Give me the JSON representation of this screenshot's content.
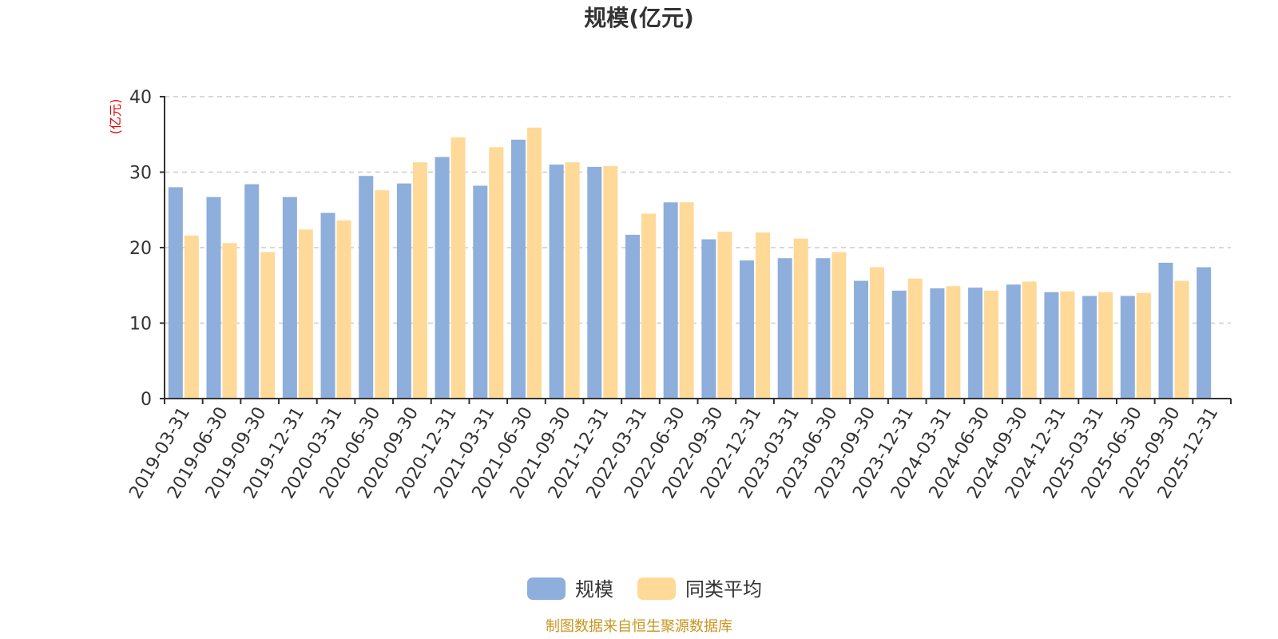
{
  "chart_data": {
    "type": "bar",
    "title": "规模(亿元)",
    "ylabel": "(亿元)",
    "xlabel": "",
    "ylim": [
      0,
      40
    ],
    "yticks": [
      0,
      10,
      20,
      30,
      40
    ],
    "grid": true,
    "legend_position": "bottom-center",
    "categories": [
      "2019-03-31",
      "2019-06-30",
      "2019-09-30",
      "2019-12-31",
      "2020-03-31",
      "2020-06-30",
      "2020-09-30",
      "2020-12-31",
      "2021-03-31",
      "2021-06-30",
      "2021-09-30",
      "2021-12-31",
      "2022-03-31",
      "2022-06-30",
      "2022-09-30",
      "2022-12-31",
      "2023-03-31",
      "2023-06-30",
      "2023-09-30",
      "2023-12-31",
      "2024-03-31",
      "2024-06-30",
      "2024-09-30",
      "2024-12-31",
      "2025-03-31",
      "2025-06-30",
      "2025-09-30",
      "2025-12-31"
    ],
    "series": [
      {
        "name": "规模",
        "color": "#8eaedb",
        "values": [
          28.0,
          26.7,
          28.4,
          26.7,
          24.6,
          29.5,
          28.5,
          32.0,
          28.2,
          34.3,
          31.0,
          30.7,
          21.7,
          26.0,
          21.1,
          18.3,
          18.6,
          18.6,
          15.6,
          14.3,
          14.6,
          14.7,
          15.1,
          14.1,
          13.6,
          13.6,
          18.0,
          17.4
        ]
      },
      {
        "name": "同类平均",
        "color": "#ffd998",
        "values": [
          21.6,
          20.6,
          19.4,
          22.4,
          23.6,
          27.6,
          31.3,
          34.6,
          33.3,
          35.9,
          31.3,
          30.8,
          24.5,
          26.0,
          22.1,
          22.0,
          21.2,
          19.4,
          17.4,
          15.9,
          14.9,
          14.3,
          15.5,
          14.2,
          14.1,
          14.0,
          15.6,
          null
        ]
      }
    ],
    "source": "制图数据来自恒生聚源数据库",
    "colors": {
      "axis": "#333333",
      "grid": "#cccccc",
      "ylabel": "#e60000",
      "source": "#c8961e",
      "title": "#333333"
    }
  }
}
